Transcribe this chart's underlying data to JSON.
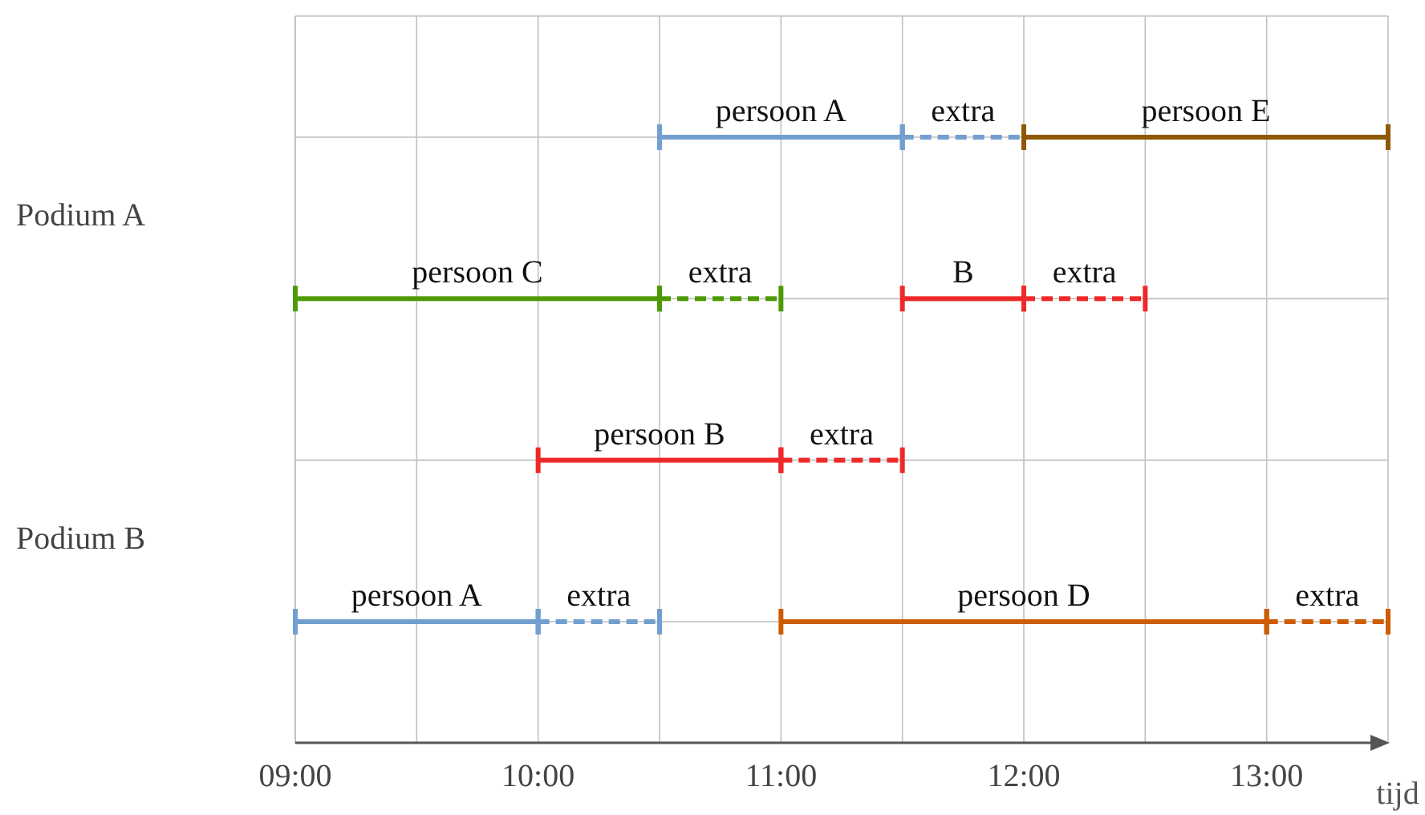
{
  "chart_data": {
    "type": "bar",
    "orientation": "horizontal",
    "xlabel": "tijd",
    "categories": [
      "Podium A",
      null,
      "Podium B",
      null
    ],
    "xlim": [
      9,
      13.5
    ],
    "xticks": [
      {
        "value": 9,
        "label": "09:00"
      },
      {
        "value": 9.5,
        "label": null
      },
      {
        "value": 10,
        "label": "10:00"
      },
      {
        "value": 10.5,
        "label": null
      },
      {
        "value": 11,
        "label": "11:00"
      },
      {
        "value": 11.5,
        "label": null
      },
      {
        "value": 12,
        "label": "12:00"
      },
      {
        "value": 12.5,
        "label": null
      },
      {
        "value": 13,
        "label": "13:00"
      },
      {
        "value": 13.5,
        "label": null
      }
    ],
    "grid": true,
    "legend": false,
    "series": [
      {
        "name": "persoon A",
        "color": "#729fcf",
        "line_style": "solid",
        "values": [
          1,
          null,
          null,
          null
        ],
        "base": [
          10.5,
          null,
          null,
          null
        ]
      },
      {
        "name": "extra",
        "color": "#729fcf",
        "line_style": "dashed",
        "values": [
          0.5,
          null,
          null,
          null
        ],
        "base": [
          11.5,
          null,
          null,
          null
        ]
      },
      {
        "name": "persoon E",
        "color": "#8f5902",
        "line_style": "solid",
        "values": [
          1.5,
          null,
          null,
          null
        ],
        "base": [
          12,
          null,
          null,
          null
        ]
      },
      {
        "name": "persoon C",
        "color": "#4e9a06",
        "line_style": "solid",
        "values": [
          null,
          1.5,
          null,
          null
        ],
        "base": [
          null,
          9,
          null,
          null
        ]
      },
      {
        "name": "extra",
        "color": "#4e9a06",
        "line_style": "dashed",
        "values": [
          null,
          0.5,
          null,
          null
        ],
        "base": [
          null,
          10.5,
          null,
          null
        ]
      },
      {
        "name": "B",
        "color": "#ef2929",
        "line_style": "solid",
        "values": [
          null,
          0.5,
          null,
          null
        ],
        "base": [
          null,
          11.5,
          null,
          null
        ]
      },
      {
        "name": "extra",
        "color": "#ef2929",
        "line_style": "dashed",
        "values": [
          null,
          0.5,
          null,
          null
        ],
        "base": [
          null,
          12,
          null,
          null
        ]
      },
      {
        "name": "persoon B",
        "color": "#ef2929",
        "line_style": "solid",
        "values": [
          null,
          null,
          1,
          null
        ],
        "base": [
          null,
          null,
          10,
          null
        ]
      },
      {
        "name": "extra",
        "color": "#ef2929",
        "line_style": "dashed",
        "values": [
          null,
          null,
          0.5,
          null
        ],
        "base": [
          null,
          null,
          11,
          null
        ]
      },
      {
        "name": "persoon A",
        "color": "#729fcf",
        "line_style": "solid",
        "values": [
          null,
          null,
          null,
          1
        ],
        "base": [
          null,
          null,
          null,
          9
        ]
      },
      {
        "name": "extra",
        "color": "#729fcf",
        "line_style": "dashed",
        "values": [
          null,
          null,
          null,
          0.5
        ],
        "base": [
          null,
          null,
          null,
          10
        ]
      },
      {
        "name": "persoon D",
        "color": "#ce5c00",
        "line_style": "solid",
        "values": [
          null,
          null,
          null,
          2
        ],
        "base": [
          null,
          null,
          null,
          11
        ]
      },
      {
        "name": "extra",
        "color": "#ce5c00",
        "line_style": "dashed",
        "values": [
          null,
          null,
          null,
          0.5
        ],
        "base": [
          null,
          null,
          null,
          13
        ]
      }
    ]
  }
}
